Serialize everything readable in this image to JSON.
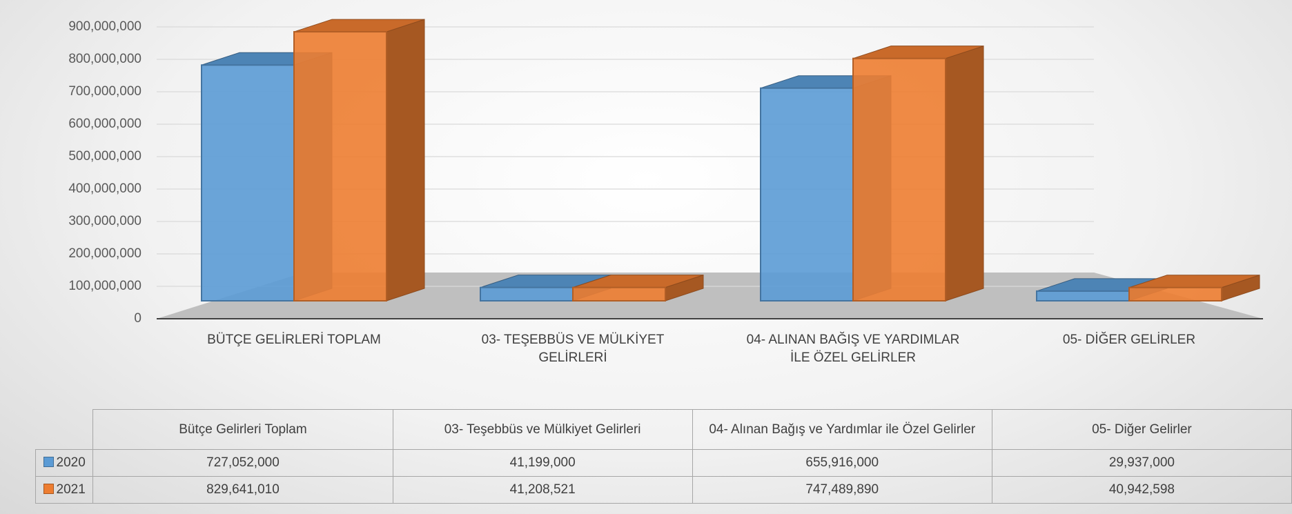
{
  "chart_data": {
    "type": "bar3d",
    "categories": [
      "BÜTÇE GELİRLERİ TOPLAM",
      "03- TEŞEBBÜS VE MÜLKİYET GELİRLERİ",
      "04- ALINAN BAĞIŞ VE YARDIMLAR İLE ÖZEL GELİRLER",
      "05- DİĞER GELİRLER"
    ],
    "table_columns": [
      "Bütçe Gelirleri Toplam",
      "03- Teşebbüs ve Mülkiyet Gelirleri",
      "04- Alınan Bağış ve Yardımlar ile Özel Gelirler",
      "05- Diğer Gelirler"
    ],
    "series": [
      {
        "name": "2020",
        "color": "#5b9bd5",
        "values": [
          727052000,
          41199000,
          655916000,
          29937000
        ],
        "value_labels": [
          "727,052,000",
          "41,199,000",
          "655,916,000",
          "29,937,000"
        ]
      },
      {
        "name": "2021",
        "color": "#ed7d31",
        "values": [
          829641010,
          41208521,
          747489890,
          40942598
        ],
        "value_labels": [
          "829,641,010",
          "41,208,521",
          "747,489,890",
          "40,942,598"
        ]
      }
    ],
    "ylim": [
      0,
      900000000
    ],
    "yticks": [
      0,
      {
        "value": 100000000,
        "label": "100,000,000"
      },
      {
        "value": 200000000,
        "label": "200,000,000"
      },
      {
        "value": 300000000,
        "label": "300,000,000"
      },
      {
        "value": 400000000,
        "label": "400,000,000"
      },
      {
        "value": 500000000,
        "label": "500,000,000"
      },
      {
        "value": 600000000,
        "label": "600,000,000"
      },
      {
        "value": 700000000,
        "label": "700,000,000"
      },
      {
        "value": 800000000,
        "label": "800,000,000"
      },
      {
        "value": 900000000,
        "label": "900,000,000"
      }
    ],
    "grid": true
  }
}
